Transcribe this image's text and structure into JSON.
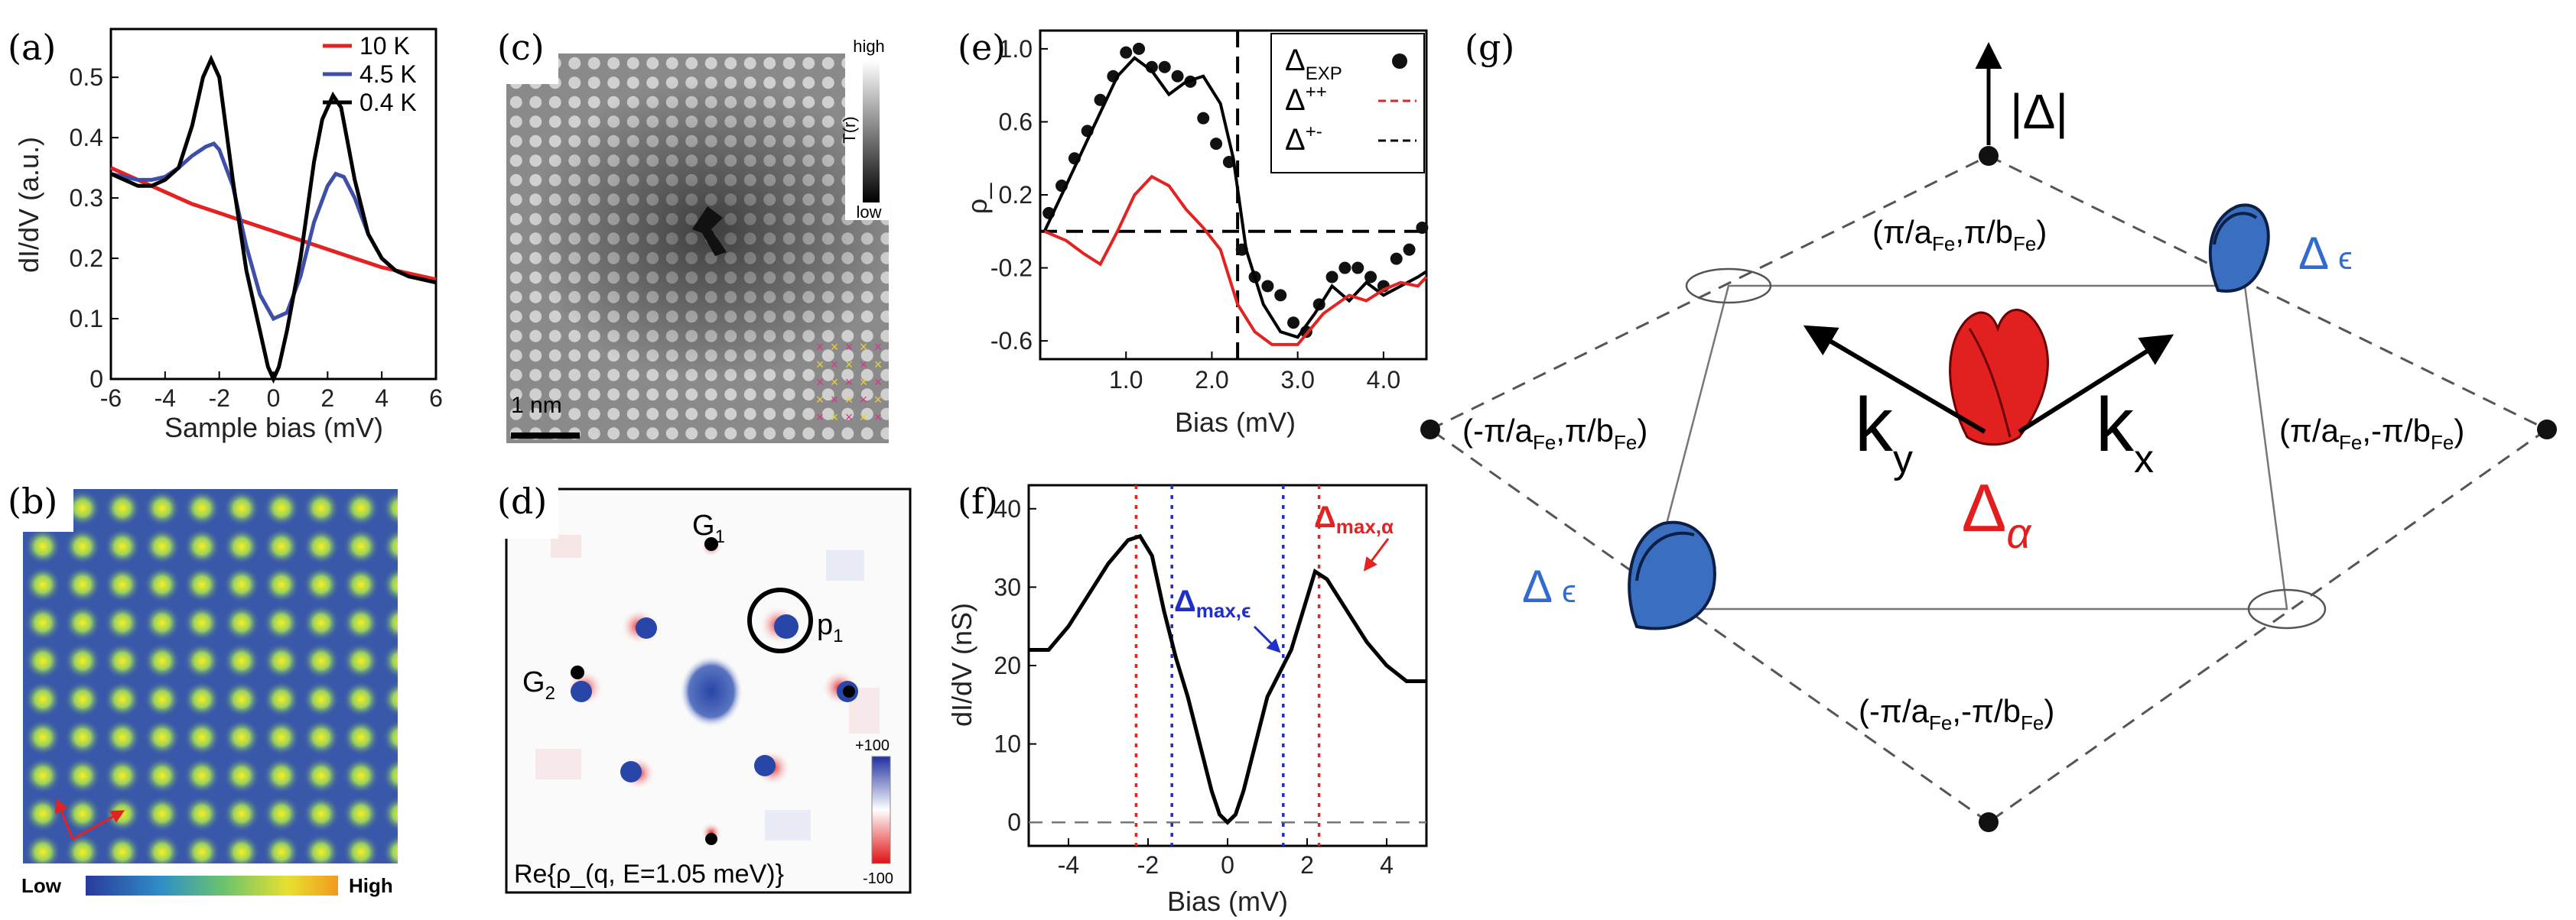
{
  "colors": {
    "red": "#e32222",
    "blue": "#3f4ea8",
    "black": "#000000",
    "greenRed": "#e21f1f",
    "iconBlue": "#2f6bd0"
  },
  "panels": {
    "a": {
      "label": "(a)"
    },
    "b": {
      "label": "(b)"
    },
    "c": {
      "label": "(c)"
    },
    "d": {
      "label": "(d)"
    },
    "e": {
      "label": "(e)"
    },
    "f": {
      "label": "(f)"
    },
    "g": {
      "label": "(g)"
    }
  },
  "chart_data": [
    {
      "id": "a",
      "type": "line",
      "xlabel": "Sample bias (mV)",
      "ylabel": "dI/dV (a.u.)",
      "xlim": [
        -6,
        6
      ],
      "ylim": [
        0,
        0.58
      ],
      "xticks": [
        "-6",
        "-4",
        "-2",
        "0",
        "2",
        "4",
        "6"
      ],
      "yticks": [
        "0",
        "0.1",
        "0.2",
        "0.3",
        "0.4",
        "0.5"
      ],
      "legend": [
        "10 K",
        "4.5 K",
        "0.4 K"
      ],
      "series": [
        {
          "name": "10 K",
          "color": "#e32222",
          "x": [
            -6,
            -5,
            -4,
            -3,
            -2,
            -1,
            0,
            1,
            2,
            3,
            4,
            5,
            6
          ],
          "y": [
            0.35,
            0.33,
            0.31,
            0.29,
            0.275,
            0.26,
            0.245,
            0.23,
            0.215,
            0.2,
            0.185,
            0.175,
            0.165
          ]
        },
        {
          "name": "4.5 K",
          "color": "#3f4ea8",
          "x": [
            -6,
            -5,
            -4.5,
            -4,
            -3.5,
            -3,
            -2.5,
            -2.2,
            -2,
            -1.5,
            -1,
            -0.5,
            0,
            0.5,
            1,
            1.5,
            2,
            2.3,
            2.6,
            3,
            3.5,
            4,
            4.5,
            5,
            5.5,
            6
          ],
          "y": [
            0.34,
            0.33,
            0.33,
            0.335,
            0.35,
            0.37,
            0.385,
            0.39,
            0.38,
            0.32,
            0.22,
            0.14,
            0.1,
            0.11,
            0.17,
            0.26,
            0.32,
            0.34,
            0.335,
            0.3,
            0.24,
            0.2,
            0.18,
            0.17,
            0.165,
            0.16
          ]
        },
        {
          "name": "0.4 K",
          "color": "#000000",
          "x": [
            -6,
            -5,
            -4.5,
            -4,
            -3.5,
            -3,
            -2.6,
            -2.3,
            -2,
            -1.5,
            -1,
            -0.5,
            -0.2,
            0,
            0.2,
            0.5,
            1,
            1.5,
            1.8,
            2.2,
            2.5,
            3,
            3.5,
            4,
            4.5,
            5,
            5.5,
            6
          ],
          "y": [
            0.34,
            0.32,
            0.32,
            0.33,
            0.35,
            0.42,
            0.5,
            0.53,
            0.5,
            0.33,
            0.18,
            0.08,
            0.02,
            0.0,
            0.02,
            0.08,
            0.2,
            0.36,
            0.43,
            0.47,
            0.45,
            0.33,
            0.24,
            0.2,
            0.18,
            0.17,
            0.165,
            0.16
          ]
        }
      ]
    },
    {
      "id": "b",
      "type": "heatmap",
      "colorbar": {
        "low": "Low",
        "high": "High"
      }
    },
    {
      "id": "c",
      "type": "heatmap",
      "colorbar": {
        "title": "T(r)",
        "high": "high",
        "low": "low"
      },
      "scalebar": "1 nm"
    },
    {
      "id": "d",
      "type": "heatmap",
      "caption": "Re{ρ_(q, E=1.05 meV)}",
      "peaks": [
        "G",
        "G",
        "p"
      ],
      "peak_subs": [
        "1",
        "2",
        "1"
      ],
      "colorbar": {
        "max": "+100",
        "min": "-100"
      }
    },
    {
      "id": "e",
      "type": "line",
      "xlabel": "Bias (mV)",
      "ylabel": "ρ_",
      "xlim": [
        0,
        4.5
      ],
      "ylim": [
        -0.7,
        1.1
      ],
      "xticks": [
        "1.0",
        "2.0",
        "3.0",
        "4.0"
      ],
      "yticks": [
        "-0.6",
        "-0.2",
        "0.2",
        "0.6",
        "1.0"
      ],
      "legend": [
        {
          "main": "Δ",
          "sub": "EXP"
        },
        {
          "main": "Δ",
          "sub": "++"
        },
        {
          "main": "Δ",
          "sub": "+-"
        }
      ],
      "dashed_x": 2.3,
      "dashed_y": 0,
      "series": [
        {
          "name": "EXP",
          "style": "dots",
          "x": [
            0.1,
            0.25,
            0.4,
            0.55,
            0.7,
            0.85,
            1.0,
            1.15,
            1.3,
            1.45,
            1.6,
            1.75,
            1.9,
            2.05,
            2.2,
            2.35,
            2.5,
            2.65,
            2.8,
            2.95,
            3.1,
            3.25,
            3.4,
            3.55,
            3.7,
            3.85,
            4.0,
            4.15,
            4.3,
            4.45
          ],
          "y": [
            0.1,
            0.25,
            0.4,
            0.55,
            0.72,
            0.85,
            0.98,
            1.0,
            0.9,
            0.9,
            0.85,
            0.82,
            0.62,
            0.48,
            0.38,
            -0.1,
            -0.25,
            -0.3,
            -0.35,
            -0.5,
            -0.55,
            -0.4,
            -0.25,
            -0.2,
            -0.2,
            -0.25,
            -0.3,
            -0.15,
            -0.1,
            0.02
          ]
        },
        {
          "name": "+-",
          "style": "line",
          "color": "#000000",
          "x": [
            0.05,
            0.3,
            0.6,
            0.9,
            1.1,
            1.3,
            1.5,
            1.7,
            1.9,
            2.1,
            2.25,
            2.4,
            2.6,
            2.8,
            3.0,
            3.2,
            3.4,
            3.6,
            3.8,
            4.0,
            4.2,
            4.4,
            4.5
          ],
          "y": [
            0.0,
            0.25,
            0.55,
            0.85,
            0.95,
            0.88,
            0.75,
            0.82,
            0.85,
            0.7,
            0.4,
            -0.1,
            -0.4,
            -0.55,
            -0.58,
            -0.45,
            -0.3,
            -0.38,
            -0.28,
            -0.35,
            -0.3,
            -0.25,
            -0.22
          ]
        },
        {
          "name": "++",
          "style": "line",
          "color": "#e32222",
          "x": [
            0.05,
            0.3,
            0.5,
            0.7,
            0.9,
            1.1,
            1.3,
            1.5,
            1.7,
            1.9,
            2.1,
            2.3,
            2.5,
            2.7,
            3.0,
            3.3,
            3.6,
            3.8,
            4.0,
            4.2,
            4.4,
            4.5
          ],
          "y": [
            0.0,
            -0.05,
            -0.12,
            -0.18,
            0.0,
            0.2,
            0.3,
            0.25,
            0.12,
            0.02,
            -0.1,
            -0.4,
            -0.55,
            -0.62,
            -0.62,
            -0.45,
            -0.35,
            -0.38,
            -0.32,
            -0.28,
            -0.3,
            -0.25
          ]
        }
      ]
    },
    {
      "id": "f",
      "type": "line",
      "xlabel": "Bias (mV)",
      "ylabel": "dI/dV (nS)",
      "xlim": [
        -5,
        5
      ],
      "ylim": [
        -3,
        43
      ],
      "xticks": [
        "-4",
        "-2",
        "0",
        "2",
        "4"
      ],
      "yticks": [
        "0",
        "10",
        "20",
        "30",
        "40"
      ],
      "vlines": [
        {
          "x": -2.3,
          "color": "#e32222"
        },
        {
          "x": -1.4,
          "color": "#1f2fc8"
        },
        {
          "x": 1.4,
          "color": "#1f2fc8"
        },
        {
          "x": 2.3,
          "color": "#e32222"
        }
      ],
      "annotations": [
        {
          "text": "Δ",
          "sub": "max,α",
          "color": "#e32222"
        },
        {
          "text": "Δ",
          "sub": "max,ϵ",
          "color": "#1f2fc8"
        }
      ],
      "series": [
        {
          "name": "dI/dV",
          "color": "#000000",
          "x": [
            -5,
            -4.5,
            -4,
            -3.5,
            -3,
            -2.5,
            -2.2,
            -1.9,
            -1.6,
            -1.3,
            -1.0,
            -0.7,
            -0.4,
            -0.2,
            0,
            0.2,
            0.4,
            0.7,
            1.0,
            1.3,
            1.6,
            1.9,
            2.2,
            2.5,
            3.0,
            3.5,
            4.0,
            4.5,
            5.0
          ],
          "y": [
            22,
            22,
            25,
            29,
            33,
            36,
            36.5,
            34,
            27,
            21,
            16,
            10,
            4,
            1,
            0,
            1,
            4,
            10,
            16,
            19,
            22,
            27,
            32,
            31,
            27,
            23,
            20,
            18,
            18
          ]
        }
      ]
    }
  ],
  "diagram_g": {
    "axis_label": "|Δ|",
    "corner_top": {
      "pre": "(π/a",
      "s1": "Fe",
      "mid": ",π/b",
      "s2": "Fe",
      "post": ")"
    },
    "corner_left": {
      "pre": "(-π/a",
      "s1": "Fe",
      "mid": ",π/b",
      "s2": "Fe",
      "post": ")"
    },
    "corner_right": {
      "pre": "(π/a",
      "s1": "Fe",
      "mid": ",-π/b",
      "s2": "Fe",
      "post": ")"
    },
    "corner_bottom": {
      "pre": "(-π/a",
      "s1": "Fe",
      "mid": ",-π/b",
      "s2": "Fe",
      "post": ")"
    },
    "ky": {
      "main": "k",
      "sub": "y"
    },
    "kx": {
      "main": "k",
      "sub": "x"
    },
    "delta_alpha": {
      "main": "Δ",
      "sub": "α"
    },
    "delta_eps": {
      "main": "Δ",
      "sub": "ϵ"
    }
  }
}
